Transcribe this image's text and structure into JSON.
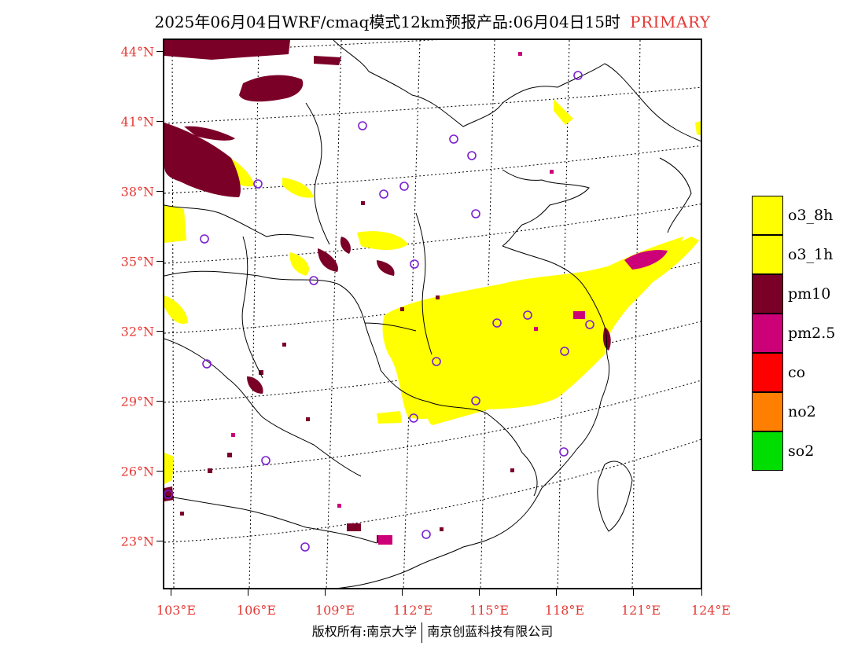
{
  "header": {
    "title": "2025年06月04日WRF/cmaq模式12km预报产品:06月04日15时",
    "mode": "PRIMARY"
  },
  "map": {
    "lat_labels": [
      "44°N",
      "41°N",
      "38°N",
      "35°N",
      "32°N",
      "29°N",
      "26°N",
      "23°N"
    ],
    "lon_labels": [
      "103°E",
      "106°E",
      "109°E",
      "112°E",
      "115°E",
      "118°E",
      "121°E",
      "124°E"
    ]
  },
  "legend": [
    {
      "label": "o3_8h",
      "color": "#ffff00"
    },
    {
      "label": "o3_1h",
      "color": "#ffff00"
    },
    {
      "label": "pm10",
      "color": "#7b0028"
    },
    {
      "label": "pm2.5",
      "color": "#cc0077"
    },
    {
      "label": "co",
      "color": "#ff0000"
    },
    {
      "label": "no2",
      "color": "#ff8000"
    },
    {
      "label": "so2",
      "color": "#00dd00"
    }
  ],
  "footer": {
    "copyright": "版权所有:南京大学",
    "company": "南京创蓝科技有限公司"
  }
}
